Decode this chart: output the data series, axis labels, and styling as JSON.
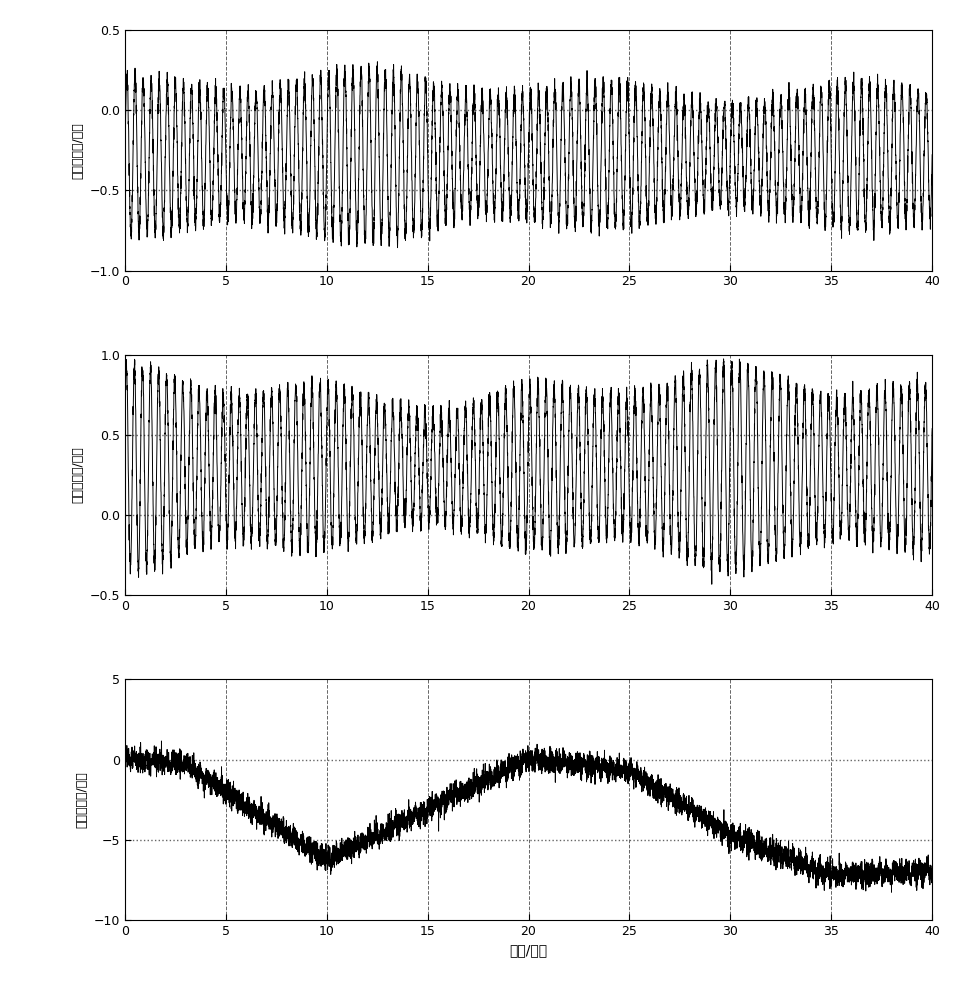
{
  "xlabel": "时间/小时",
  "subplot1_ylabel": "纵摇位置差/角分",
  "subplot2_ylabel": "横摇位置差/角分",
  "subplot3_ylabel": "航向位置差/角分",
  "xlim": [
    0,
    40
  ],
  "subplot1_ylim": [
    -1.0,
    0.5
  ],
  "subplot1_yticks": [
    -1.0,
    -0.5,
    0.0,
    0.5
  ],
  "subplot2_ylim": [
    -0.5,
    1.0
  ],
  "subplot2_yticks": [
    -0.5,
    0.0,
    0.5,
    1.0
  ],
  "subplot3_ylim": [
    -10.0,
    5.0
  ],
  "subplot3_yticks": [
    -10,
    -5,
    0,
    5
  ],
  "xticks": [
    0,
    5,
    10,
    15,
    20,
    25,
    30,
    35,
    40
  ],
  "grid_dash_color": "#666666",
  "grid_dot_color": "#666666",
  "line_color": "#000000",
  "background_color": "#ffffff",
  "line_width": 0.7,
  "fig_width": 9.61,
  "fig_height": 10.0,
  "dpi": 100,
  "subplot1_hlines": [
    0.0,
    -0.5
  ],
  "subplot2_hlines": [
    0.5,
    0.0
  ],
  "subplot3_hlines": [
    0.0,
    -5.0
  ]
}
